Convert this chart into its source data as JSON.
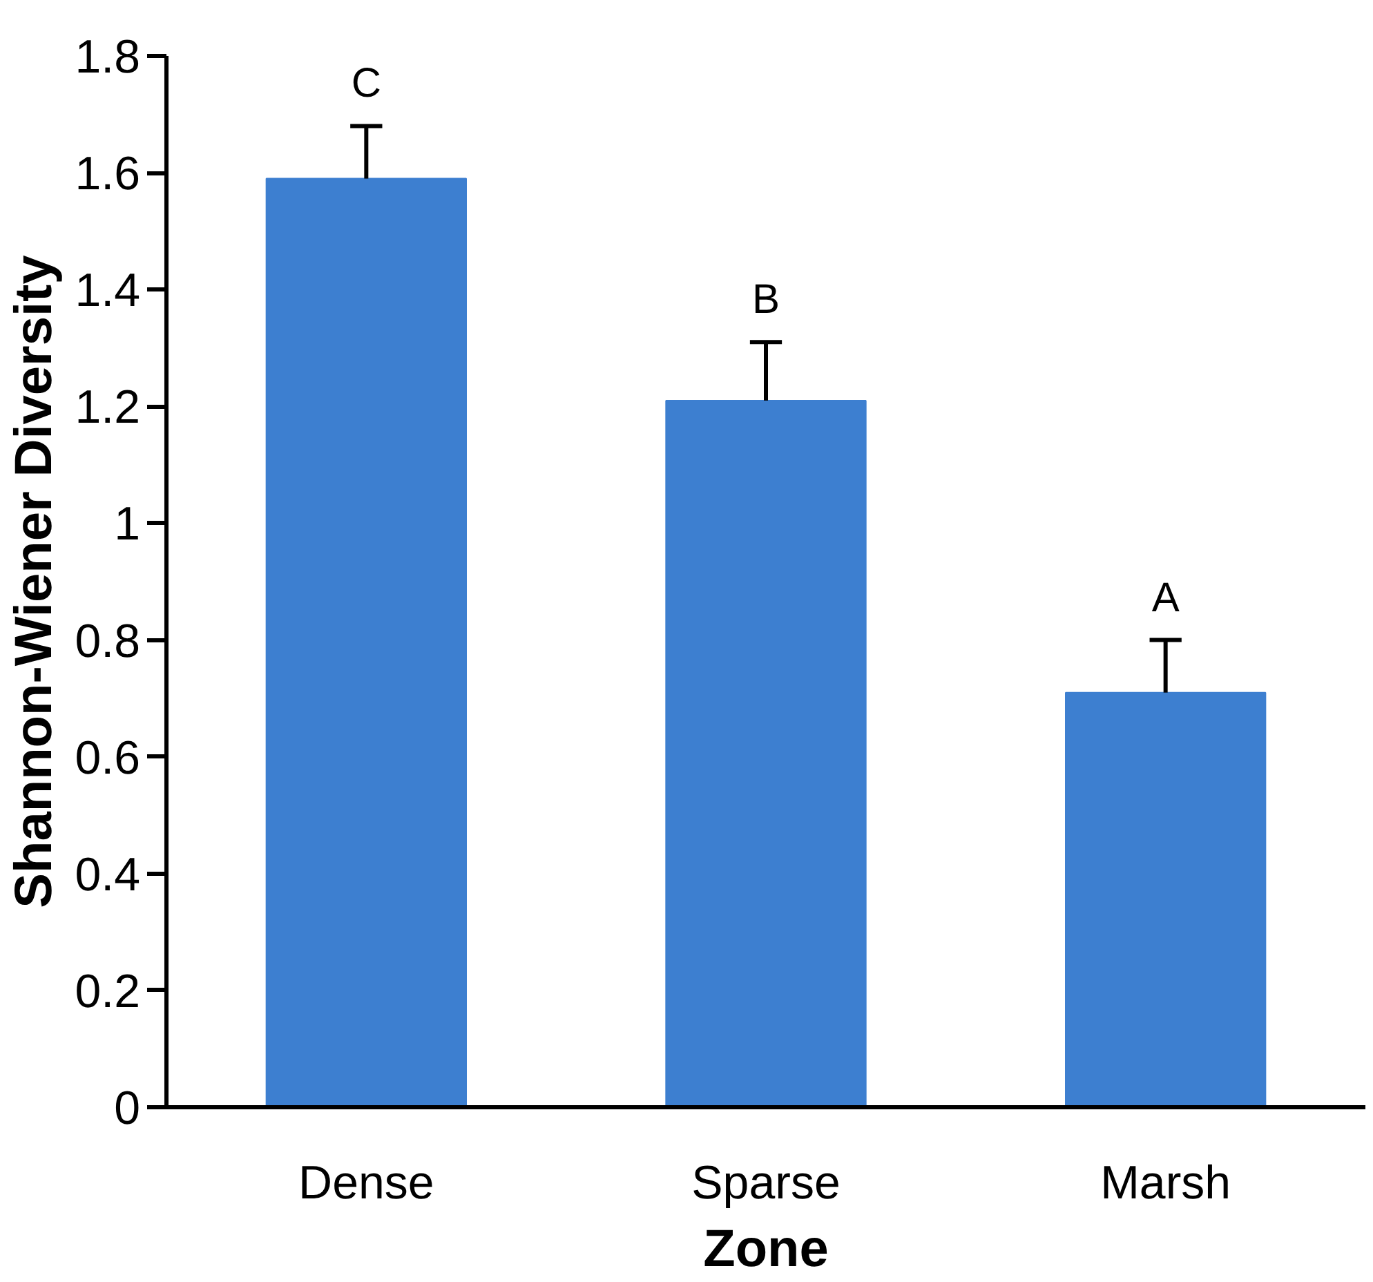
{
  "chart_data": {
    "type": "bar",
    "xlabel": "Zone",
    "ylabel": "Shannon-Wiener Diversity",
    "categories": [
      "Dense",
      "Sparse",
      "Marsh"
    ],
    "values": [
      1.59,
      1.21,
      0.71
    ],
    "errors": [
      [
        1.59,
        1.68
      ],
      [
        1.21,
        1.31
      ],
      [
        0.71,
        0.8
      ]
    ],
    "color": "#3d7fd0",
    "ylim": [
      0,
      1.8
    ],
    "yticks": [
      0,
      0.2,
      0.4,
      0.6,
      0.8,
      1,
      1.2,
      1.4,
      1.6,
      1.8
    ],
    "annotations": [
      "C",
      "B",
      "A"
    ],
    "grid": false
  }
}
